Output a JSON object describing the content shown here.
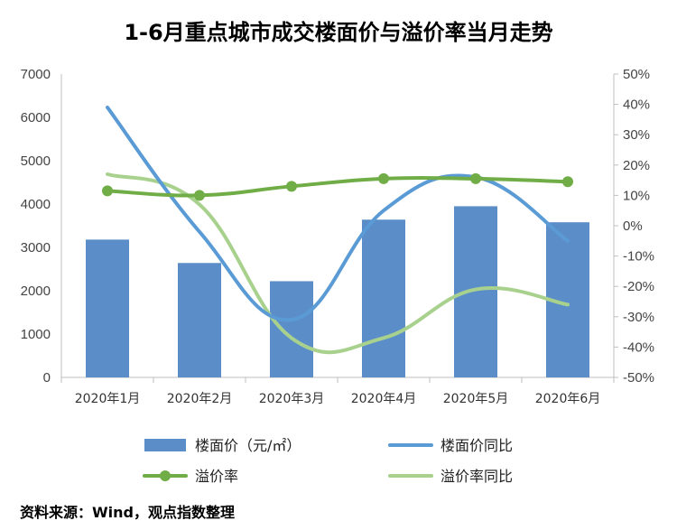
{
  "source": "资料来源：Wind，观点指数整理",
  "chart_data": {
    "type": "bar",
    "title": "1-6月重点城市成交楼面价与溢价率当月走势",
    "categories": [
      "2020年1月",
      "2020年2月",
      "2020年3月",
      "2020年4月",
      "2020年5月",
      "2020年6月"
    ],
    "y_left": {
      "ylim": [
        0,
        7000
      ],
      "ticks": [
        "0",
        "1000",
        "2000",
        "3000",
        "4000",
        "5000",
        "6000",
        "7000"
      ]
    },
    "y_right": {
      "ylim": [
        -0.5,
        0.5
      ],
      "ticks": [
        "-50%",
        "-40%",
        "-30%",
        "-20%",
        "-10%",
        "0%",
        "10%",
        "20%",
        "30%",
        "40%",
        "50%"
      ]
    },
    "series": [
      {
        "name": "楼面价（元/㎡）",
        "type": "bar",
        "axis": "left",
        "color": "#5b8ec9",
        "values": [
          3180,
          2640,
          2220,
          3640,
          3950,
          3580
        ]
      },
      {
        "name": "楼面价同比",
        "type": "smooth-line",
        "axis": "right",
        "color": "#5b9bd5",
        "values": [
          0.39,
          -0.02,
          -0.31,
          0.05,
          0.16,
          -0.05
        ]
      },
      {
        "name": "溢价率",
        "type": "line-markers",
        "axis": "right",
        "color": "#70ad47",
        "values": [
          0.115,
          0.1,
          0.13,
          0.155,
          0.155,
          0.145
        ]
      },
      {
        "name": "溢价率同比",
        "type": "smooth-line",
        "axis": "right",
        "color": "#a9d18e",
        "values": [
          0.17,
          0.07,
          -0.37,
          -0.37,
          -0.21,
          -0.26
        ]
      }
    ],
    "grid": false,
    "legend_position": "bottom"
  }
}
